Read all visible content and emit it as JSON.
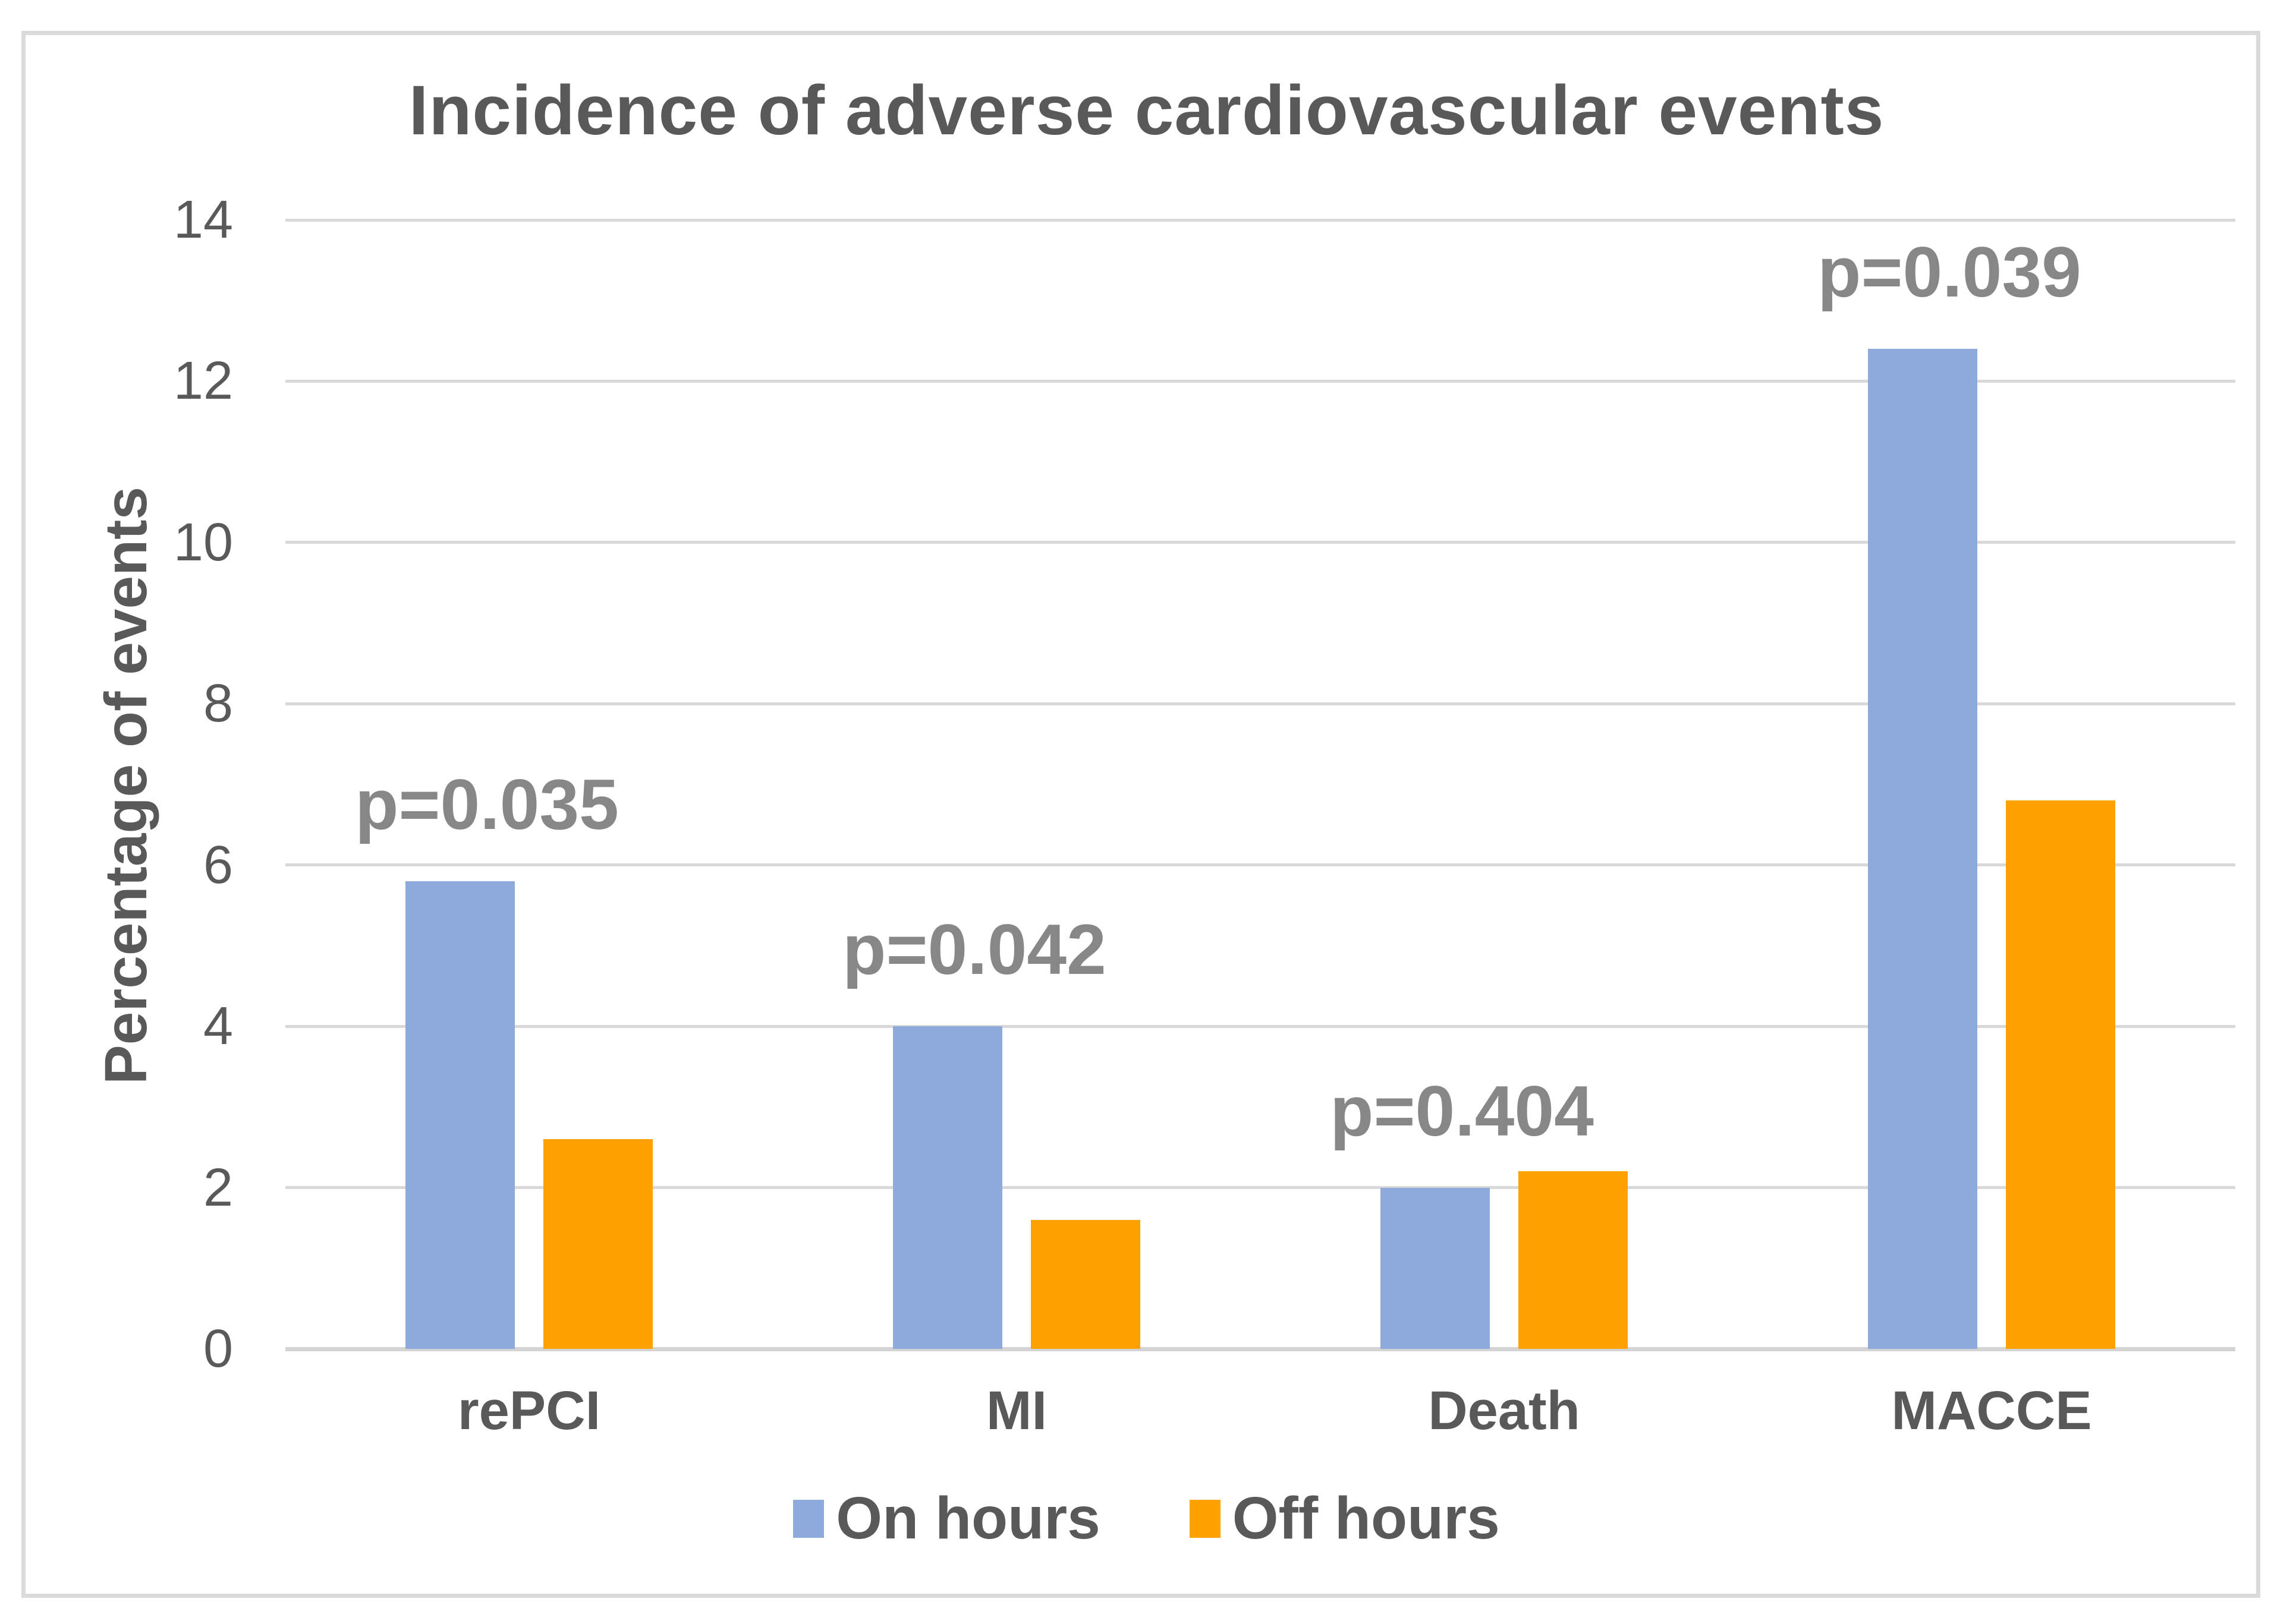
{
  "chart_data": {
    "type": "bar",
    "title": "Incidence of adverse cardiovascular events",
    "xlabel": "",
    "ylabel": "Percentage of events",
    "categories": [
      "rePCI",
      "MI",
      "Death",
      "MACCE"
    ],
    "series": [
      {
        "name": "On hours",
        "color": "#8EA9DB",
        "values": [
          5.8,
          4.0,
          2.0,
          12.4
        ]
      },
      {
        "name": "Off hours",
        "color": "#FFA200",
        "values": [
          2.6,
          1.6,
          2.2,
          6.8
        ]
      }
    ],
    "p_values": [
      "p=0.035",
      "p=0.042",
      "p=0.404",
      "p=0.039"
    ],
    "ylim": [
      0,
      14
    ],
    "yticks": [
      0,
      2,
      4,
      6,
      8,
      10,
      12,
      14
    ],
    "grid": true,
    "legend_position": "bottom"
  },
  "palette": {
    "title_text": "#595959",
    "tick_text": "#595959",
    "p_value_text": "#878787",
    "gridline": "#D9D9D9",
    "frame_border": "#DADADA",
    "background": "#FFFFFF"
  }
}
